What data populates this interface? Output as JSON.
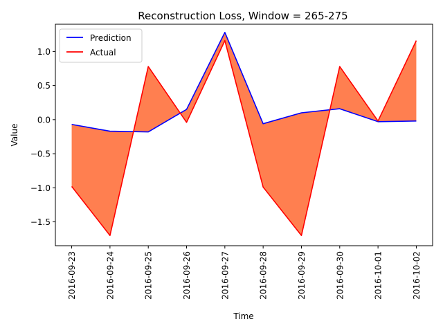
{
  "chart_data": {
    "type": "line",
    "title": "Reconstruction Loss, Window = 265-275",
    "xlabel": "Time",
    "ylabel": "Value",
    "categories": [
      "2016-09-23",
      "2016-09-24",
      "2016-09-25",
      "2016-09-26",
      "2016-09-27",
      "2016-09-28",
      "2016-09-29",
      "2016-09-30",
      "2016-10-01",
      "2016-10-02"
    ],
    "ylim": [
      -1.85,
      1.4
    ],
    "yticks": [
      -1.5,
      -1.0,
      -0.5,
      0.0,
      0.5,
      1.0
    ],
    "ytick_labels": [
      "−1.5",
      "−1.0",
      "−0.5",
      "0.0",
      "0.5",
      "1.0"
    ],
    "grid": false,
    "legend_position": "top-left",
    "fill_between": true,
    "fill_color": "#ff7f50",
    "series": [
      {
        "name": "Prediction",
        "color": "#0000ff",
        "values": [
          -0.07,
          -0.17,
          -0.18,
          0.15,
          1.28,
          -0.06,
          0.1,
          0.16,
          -0.03,
          -0.02
        ]
      },
      {
        "name": "Actual",
        "color": "#ff0000",
        "values": [
          -0.98,
          -1.7,
          0.78,
          -0.04,
          1.16,
          -0.99,
          -1.7,
          0.78,
          -0.02,
          1.16
        ]
      }
    ]
  }
}
